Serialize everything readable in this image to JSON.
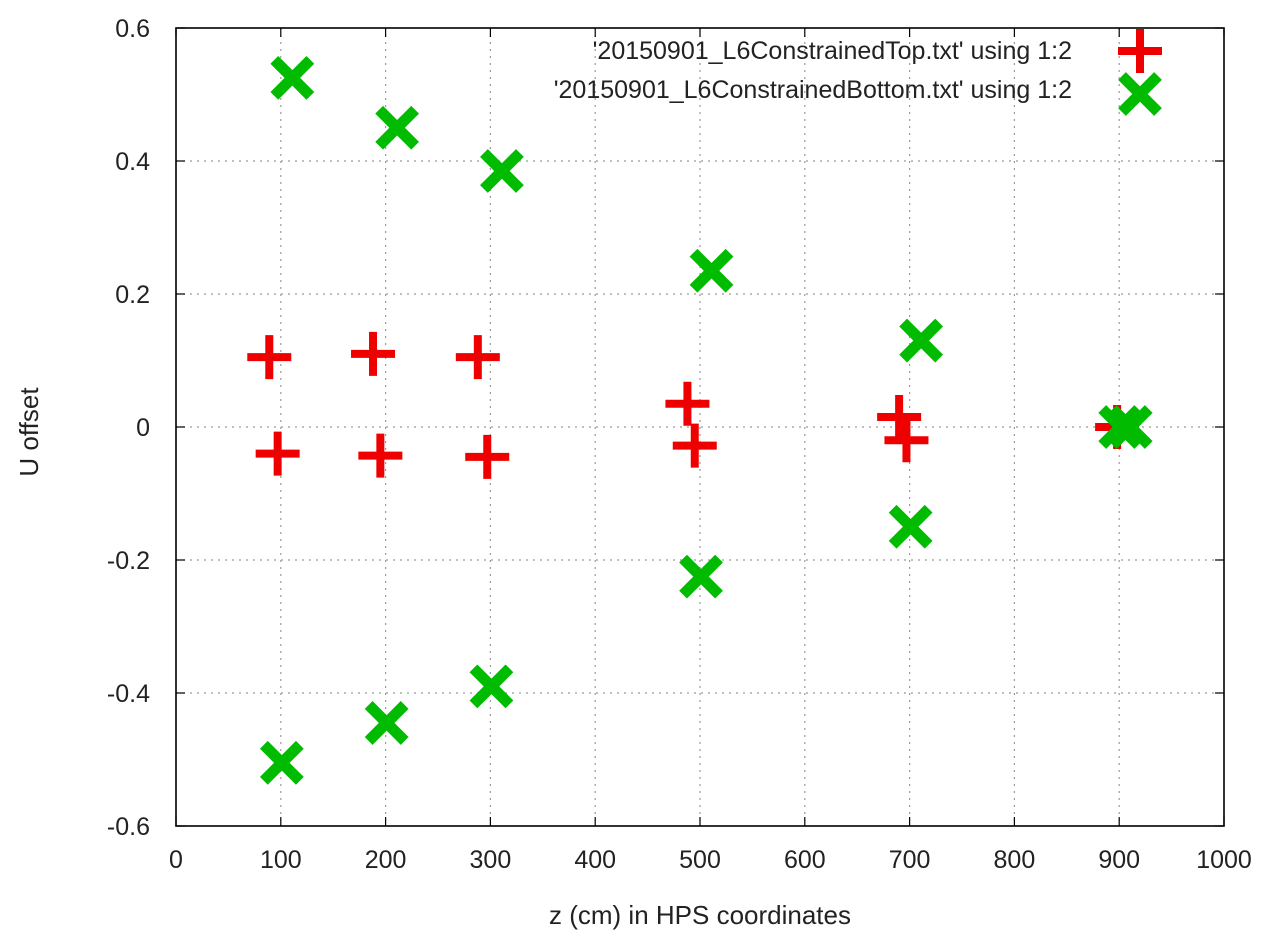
{
  "chart_data": {
    "type": "scatter",
    "title": "",
    "xlabel": "z (cm) in HPS coordinates",
    "ylabel": "U offset",
    "xlim": [
      0,
      1000
    ],
    "ylim": [
      -0.6,
      0.6
    ],
    "x_ticks": [
      "0",
      "100",
      "200",
      "300",
      "400",
      "500",
      "600",
      "700",
      "800",
      "900",
      "1000"
    ],
    "y_ticks": [
      "0.6",
      "0.4",
      "0.2",
      "0",
      "-0.2",
      "-0.4",
      "-0.6"
    ],
    "grid": true,
    "legend_position": "top-right",
    "series": [
      {
        "name": "'20150901_L6ConstrainedTop.txt' using 1:2",
        "marker": "plus",
        "color": "#ee0000",
        "points": [
          [
            89,
            0.105
          ],
          [
            188,
            0.11
          ],
          [
            288,
            0.105
          ],
          [
            97,
            -0.04
          ],
          [
            195,
            -0.043
          ],
          [
            297,
            -0.045
          ],
          [
            488,
            0.035
          ],
          [
            495,
            -0.028
          ],
          [
            690,
            0.015
          ],
          [
            697,
            -0.02
          ],
          [
            898,
            0.0
          ]
        ]
      },
      {
        "name": "'20150901_L6ConstrainedBottom.txt' using 1:2",
        "marker": "cross",
        "color": "#00bb00",
        "points": [
          [
            111,
            0.525
          ],
          [
            211,
            0.45
          ],
          [
            311,
            0.385
          ],
          [
            511,
            0.235
          ],
          [
            711,
            0.13
          ],
          [
            101,
            -0.505
          ],
          [
            201,
            -0.445
          ],
          [
            301,
            -0.39
          ],
          [
            501,
            -0.225
          ],
          [
            701,
            -0.15
          ],
          [
            901,
            0.0
          ],
          [
            911,
            0.0
          ]
        ]
      }
    ]
  }
}
